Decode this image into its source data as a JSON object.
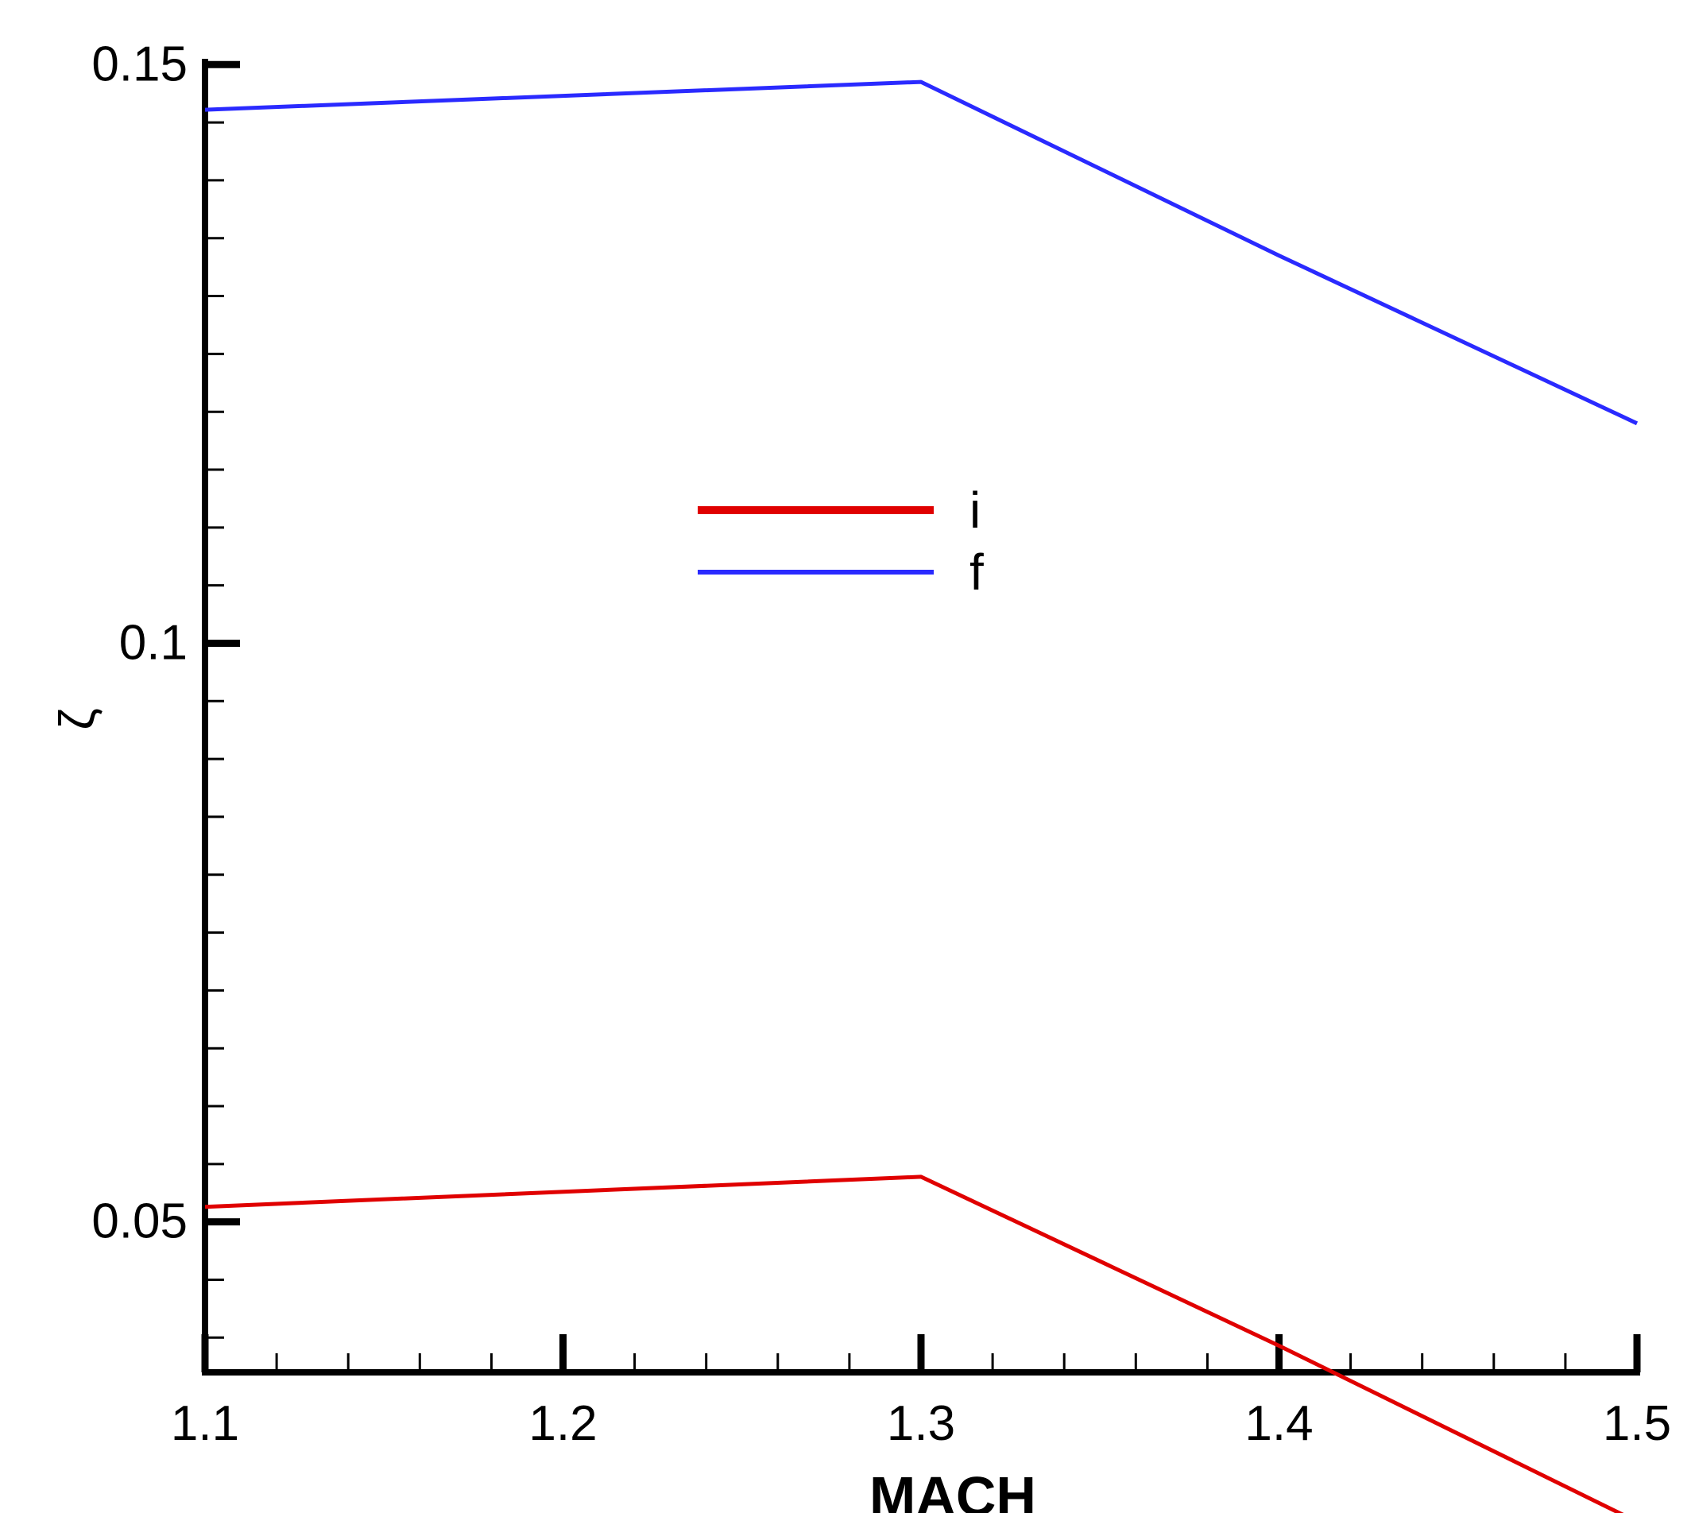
{
  "chart_data": {
    "type": "line",
    "xlabel": "MACH",
    "ylabel": "ζ",
    "xlim": [
      1.1,
      1.5
    ],
    "ylim": [
      0.037,
      0.1505
    ],
    "x_ticks_major": [
      1.1,
      1.2,
      1.3,
      1.4,
      1.5
    ],
    "x_tick_labels": [
      "1.1",
      "1.2",
      "1.3",
      "1.4",
      "1.5"
    ],
    "x_ticks_minor": [
      1.12,
      1.14,
      1.16,
      1.18,
      1.22,
      1.24,
      1.26,
      1.28,
      1.32,
      1.34,
      1.36,
      1.38,
      1.42,
      1.44,
      1.46,
      1.48
    ],
    "y_ticks_major": [
      0.05,
      0.1,
      0.15
    ],
    "y_tick_labels": [
      "0.05",
      "0.1",
      "0.15"
    ],
    "y_ticks_minor": [
      0.04,
      0.045,
      0.055,
      0.06,
      0.065,
      0.07,
      0.075,
      0.08,
      0.085,
      0.09,
      0.095,
      0.105,
      0.11,
      0.115,
      0.12,
      0.125,
      0.13,
      0.135,
      0.14,
      0.145
    ],
    "grid": false,
    "legend_position": "center",
    "series": [
      {
        "name": "i",
        "color": "#e00000",
        "x": [
          1.1,
          1.3,
          1.4,
          1.5
        ],
        "y": [
          0.0513,
          0.0539,
          0.0393,
          0.0241
        ]
      },
      {
        "name": "f",
        "color": "#2a2aff",
        "x": [
          1.1,
          1.3,
          1.4,
          1.5
        ],
        "y": [
          0.1461,
          0.1485,
          0.1335,
          0.119
        ]
      }
    ]
  }
}
